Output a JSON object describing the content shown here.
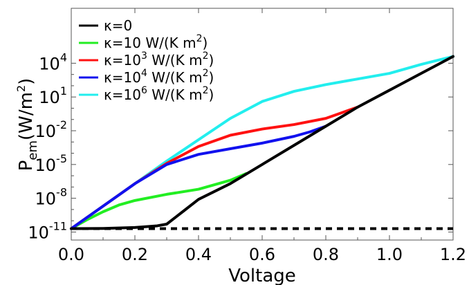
{
  "chart_data": {
    "type": "line",
    "title": "",
    "xlabel": "Voltage",
    "ylabel": "P",
    "ylabel_sub": "em",
    "ylabel_units": "(W/m",
    "ylabel_units_sup": "2",
    "ylabel_units_close": ")",
    "xlim": [
      0.0,
      1.2
    ],
    "ylim_log10": [
      -11,
      5
    ],
    "y_scale": "log",
    "grid": false,
    "legend_position": "top-left",
    "x_ticks": [
      0.0,
      0.2,
      0.4,
      0.6,
      0.8,
      1.0,
      1.2
    ],
    "x_tick_labels": [
      "0.0",
      "0.2",
      "0.4",
      "0.6",
      "0.8",
      "1.0",
      "1.2"
    ],
    "y_ticks_log10": [
      -11,
      -8,
      -5,
      -2,
      1,
      4
    ],
    "y_tick_labels": [
      {
        "base": "10",
        "exp": "-11"
      },
      {
        "base": "10",
        "exp": "-8"
      },
      {
        "base": "10",
        "exp": "-5"
      },
      {
        "base": "10",
        "exp": "-2"
      },
      {
        "base": "10",
        "exp": "1"
      },
      {
        "base": "10",
        "exp": "4"
      }
    ],
    "series": [
      {
        "name": "κ=0",
        "legend": {
          "pre": "κ=0",
          "sup": "",
          "post": ""
        },
        "color": "#000000",
        "points": [
          [
            0.0,
            -10.7
          ],
          [
            0.1,
            -10.68
          ],
          [
            0.2,
            -10.6
          ],
          [
            0.27,
            -10.45
          ],
          [
            0.3,
            -10.3
          ],
          [
            0.35,
            -9.2
          ],
          [
            0.4,
            -8.1
          ],
          [
            0.5,
            -6.7
          ],
          [
            0.6,
            -5.0
          ],
          [
            0.7,
            -3.3
          ],
          [
            0.8,
            -1.6
          ],
          [
            0.9,
            0.1
          ],
          [
            1.0,
            1.6
          ],
          [
            1.1,
            3.1
          ],
          [
            1.2,
            4.6
          ]
        ]
      },
      {
        "name": "κ=10 W/(K m²)",
        "legend": {
          "pre": "κ=10 W/(K m",
          "sup": "2",
          "post": ")"
        },
        "color": "#22ee22",
        "points": [
          [
            0.0,
            -10.7
          ],
          [
            0.05,
            -9.9
          ],
          [
            0.1,
            -9.2
          ],
          [
            0.15,
            -8.6
          ],
          [
            0.2,
            -8.2
          ],
          [
            0.3,
            -7.65
          ],
          [
            0.4,
            -7.2
          ],
          [
            0.5,
            -6.4
          ],
          [
            0.55,
            -5.8
          ]
        ]
      },
      {
        "name": "κ=10³ W/(K m²)",
        "legend": {
          "pre": "κ=10",
          "sup": "3",
          "post": " W/(K m"
        },
        "legend_tail": {
          "sup": "2",
          "post": ")"
        },
        "color": "#ff1111",
        "points": [
          [
            0.0,
            -10.7
          ],
          [
            0.1,
            -8.7
          ],
          [
            0.2,
            -6.7
          ],
          [
            0.3,
            -4.9
          ],
          [
            0.4,
            -3.4
          ],
          [
            0.5,
            -2.4
          ],
          [
            0.6,
            -1.85
          ],
          [
            0.7,
            -1.45
          ],
          [
            0.8,
            -0.9
          ],
          [
            0.85,
            -0.4
          ],
          [
            0.9,
            0.1
          ]
        ]
      },
      {
        "name": "κ=10⁴ W/(K m²)",
        "legend": {
          "pre": "κ=10",
          "sup": "4",
          "post": " W/(K m"
        },
        "legend_tail": {
          "sup": "2",
          "post": ")"
        },
        "color": "#1111ee",
        "points": [
          [
            0.0,
            -10.7
          ],
          [
            0.1,
            -8.7
          ],
          [
            0.2,
            -6.7
          ],
          [
            0.3,
            -5.0
          ],
          [
            0.4,
            -4.1
          ],
          [
            0.5,
            -3.6
          ],
          [
            0.6,
            -3.1
          ],
          [
            0.7,
            -2.5
          ],
          [
            0.75,
            -2.1
          ],
          [
            0.8,
            -1.6
          ]
        ]
      },
      {
        "name": "κ=10⁶ W/(K m²)",
        "legend": {
          "pre": "κ=10",
          "sup": "6",
          "post": " W/(K m"
        },
        "legend_tail": {
          "sup": "2",
          "post": ")"
        },
        "color": "#22eeee",
        "points": [
          [
            0.0,
            -10.7
          ],
          [
            0.1,
            -8.7
          ],
          [
            0.2,
            -6.7
          ],
          [
            0.3,
            -4.7
          ],
          [
            0.4,
            -2.8
          ],
          [
            0.5,
            -0.9
          ],
          [
            0.6,
            0.6
          ],
          [
            0.7,
            1.5
          ],
          [
            0.8,
            2.1
          ],
          [
            0.9,
            2.6
          ],
          [
            1.0,
            3.1
          ],
          [
            1.1,
            3.9
          ],
          [
            1.2,
            4.6
          ]
        ]
      },
      {
        "name": "",
        "legend": null,
        "color": "#000000",
        "dashed": true,
        "points": [
          [
            0.0,
            -10.7
          ],
          [
            1.2,
            -10.7
          ]
        ]
      }
    ]
  }
}
